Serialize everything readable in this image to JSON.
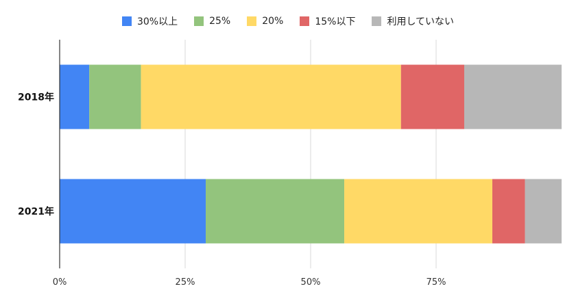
{
  "chart_data": {
    "type": "bar",
    "orientation": "horizontal",
    "stacked": true,
    "categories": [
      "2018年",
      "2021年"
    ],
    "series": [
      {
        "name": "30%以上",
        "color": "#4285f4",
        "values": [
          5.9,
          29.1
        ]
      },
      {
        "name": "25%",
        "color": "#93c47d",
        "values": [
          10.3,
          27.6
        ]
      },
      {
        "name": "20%",
        "color": "#ffd966",
        "values": [
          51.8,
          29.5
        ]
      },
      {
        "name": "15%以下",
        "color": "#e06666",
        "values": [
          12.6,
          6.5
        ]
      },
      {
        "name": "利用していない",
        "color": "#b7b7b7",
        "values": [
          19.4,
          7.3
        ]
      }
    ],
    "xlim": [
      0,
      100
    ],
    "x_ticks": [
      "0%",
      "25%",
      "50%",
      "75%"
    ],
    "x_tick_values": [
      0,
      25,
      50,
      75
    ],
    "grid": true,
    "legend_position": "top"
  }
}
